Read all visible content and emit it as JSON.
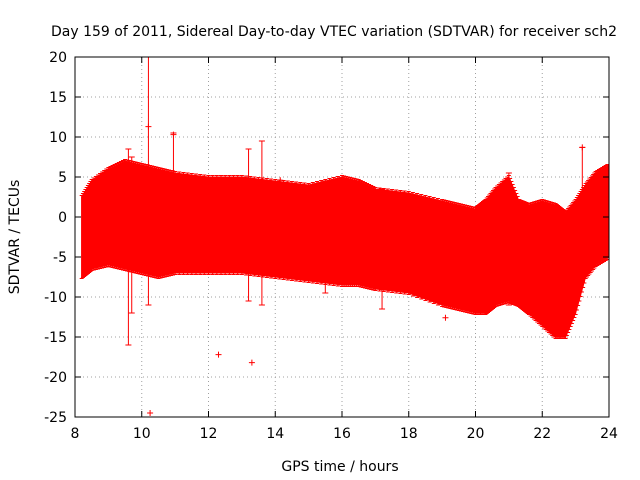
{
  "chart_data": {
    "type": "scatter",
    "title": "Day 159 of 2011, Sidereal Day-to-day VTEC variation (SDTVAR) for receiver sch2",
    "xlabel": "GPS time / hours",
    "ylabel": "SDTVAR / TECUs",
    "xlim": [
      8,
      24
    ],
    "ylim": [
      -25,
      20
    ],
    "grid": true,
    "xticks": [
      8,
      10,
      12,
      14,
      16,
      18,
      20,
      22,
      24
    ],
    "yticks": [
      -25,
      -20,
      -15,
      -10,
      -5,
      0,
      5,
      10,
      15,
      20
    ],
    "series": [
      {
        "name": "SDTVAR",
        "color": "#ff0000",
        "band": {
          "x": [
            8.2,
            8.5,
            9.0,
            9.5,
            10.0,
            10.5,
            11.0,
            12.0,
            13.0,
            14.0,
            15.0,
            16.0,
            16.5,
            17.0,
            18.0,
            19.0,
            19.5,
            20.0,
            20.3,
            20.6,
            21.0,
            21.3,
            21.6,
            22.0,
            22.4,
            22.7,
            23.0,
            23.3,
            23.6,
            24.0
          ],
          "upper": [
            2.5,
            4.5,
            6.0,
            7.0,
            6.5,
            6.0,
            5.5,
            5.0,
            5.0,
            4.5,
            4.0,
            5.0,
            4.5,
            3.5,
            3.0,
            2.0,
            1.5,
            1.0,
            2.0,
            3.5,
            5.0,
            2.0,
            1.5,
            2.0,
            1.5,
            0.5,
            2.0,
            4.0,
            5.5,
            6.5
          ],
          "lower": [
            -7.5,
            -6.5,
            -6.0,
            -6.5,
            -7.0,
            -7.5,
            -7.0,
            -7.0,
            -7.0,
            -7.5,
            -8.0,
            -8.5,
            -8.5,
            -9.0,
            -9.5,
            -11.0,
            -11.5,
            -12.0,
            -12.0,
            -11.0,
            -10.5,
            -11.0,
            -12.0,
            -13.5,
            -15.0,
            -15.0,
            -12.0,
            -7.5,
            -6.0,
            -5.0
          ]
        },
        "spikes": [
          {
            "x": 9.6,
            "ymin": -16.0,
            "ymax": 8.5
          },
          {
            "x": 9.7,
            "ymin": -12.0,
            "ymax": 7.5
          },
          {
            "x": 10.2,
            "ymin": -11.0,
            "ymax": 20.0
          },
          {
            "x": 10.95,
            "ymin": -7.0,
            "ymax": 10.5
          },
          {
            "x": 13.2,
            "ymin": -10.5,
            "ymax": 8.5
          },
          {
            "x": 13.6,
            "ymin": -11.0,
            "ymax": 9.5
          },
          {
            "x": 15.5,
            "ymin": -9.5,
            "ymax": 4.5
          },
          {
            "x": 17.2,
            "ymin": -11.5,
            "ymax": 3.5
          },
          {
            "x": 21.0,
            "ymin": -11.0,
            "ymax": 5.5
          },
          {
            "x": 23.2,
            "ymin": -7.0,
            "ymax": 8.7
          }
        ],
        "points": [
          {
            "x": 10.25,
            "y": -24.5
          },
          {
            "x": 12.3,
            "y": -17.2
          },
          {
            "x": 13.3,
            "y": -18.2
          },
          {
            "x": 19.1,
            "y": -12.6
          },
          {
            "x": 23.2,
            "y": 8.7
          },
          {
            "x": 10.2,
            "y": 11.3
          },
          {
            "x": 14.15,
            "y": 4.6
          },
          {
            "x": 10.95,
            "y": 10.3
          }
        ]
      }
    ]
  }
}
